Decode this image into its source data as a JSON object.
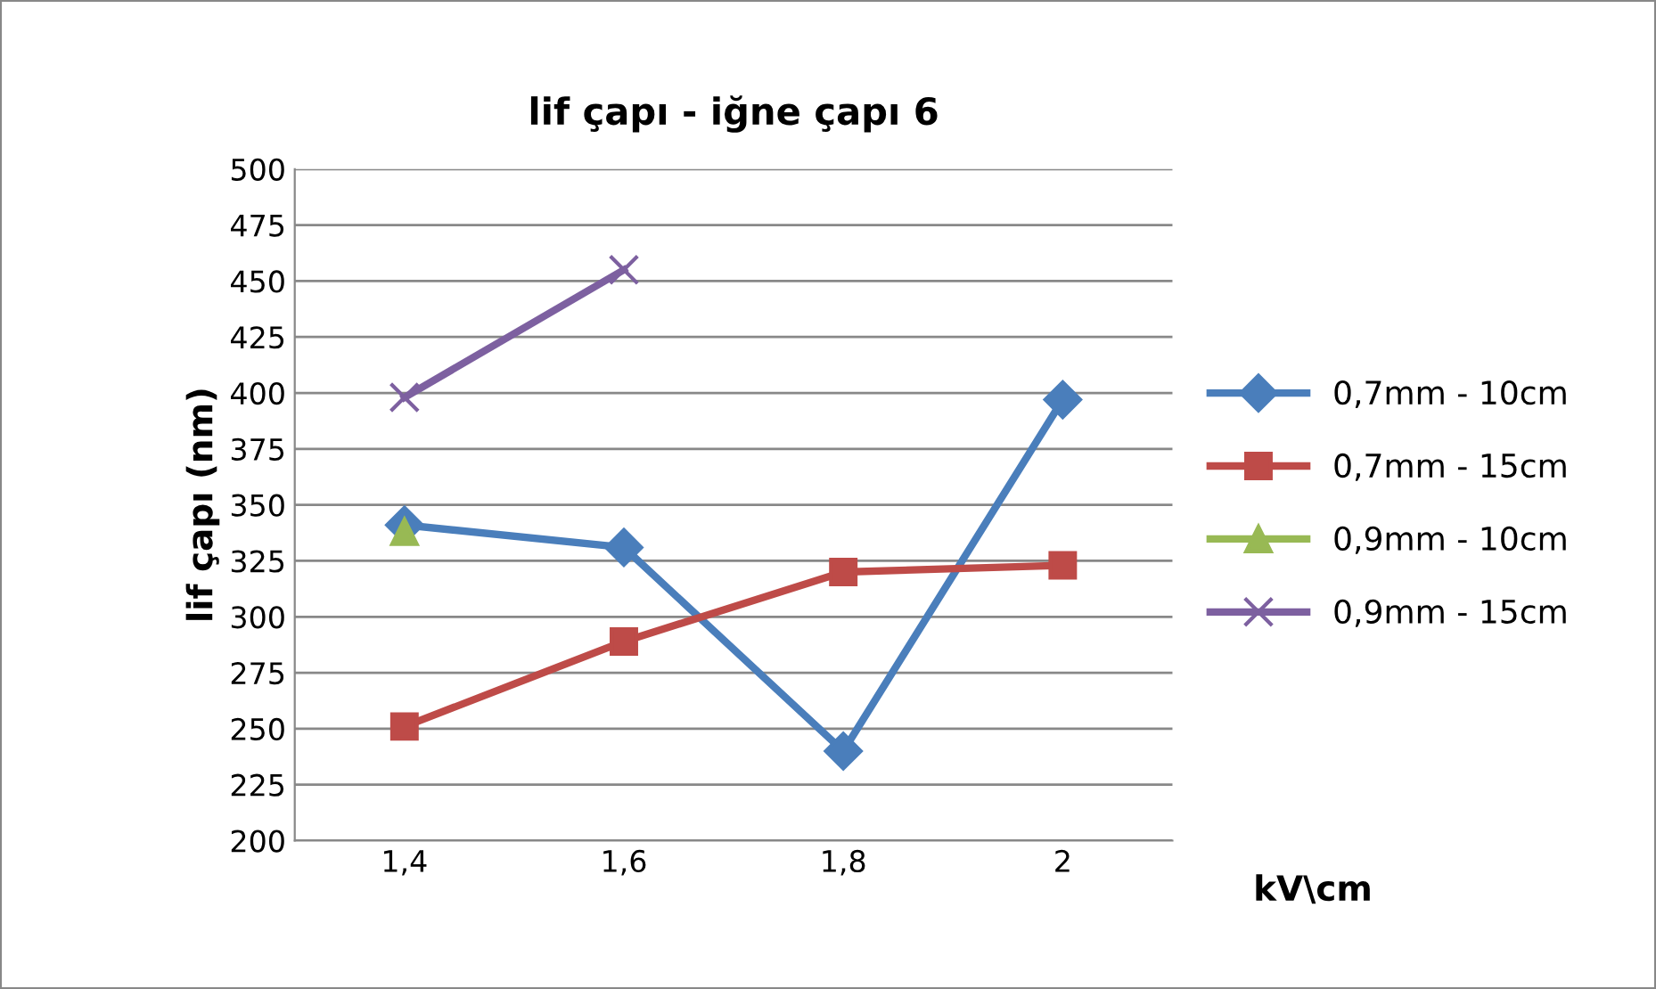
{
  "chart_data": {
    "type": "line",
    "title": "lif çapı - iğne çapı 6",
    "xlabel": "kV\\cm",
    "ylabel": "lif çapı (nm)",
    "categories": [
      "1,4",
      "1,6",
      "1,8",
      "2"
    ],
    "series": [
      {
        "name": "0,7mm - 10cm",
        "color": "#4a7ebb",
        "marker": "diamond",
        "values": [
          341,
          331,
          240,
          397
        ]
      },
      {
        "name": "0,7mm - 15cm",
        "color": "#be4b48",
        "marker": "square",
        "values": [
          251,
          289,
          320,
          323
        ]
      },
      {
        "name": "0,9mm - 10cm",
        "color": "#98b954",
        "marker": "triangle",
        "values": [
          338,
          null,
          null,
          null
        ]
      },
      {
        "name": "0,9mm - 15cm",
        "color": "#7d60a0",
        "marker": "cross",
        "values": [
          398,
          455,
          null,
          null
        ]
      }
    ],
    "ylim": [
      200,
      500
    ],
    "yticks": [
      200,
      225,
      250,
      275,
      300,
      325,
      350,
      375,
      400,
      425,
      450,
      475,
      500
    ],
    "grid": "y",
    "legend": "right",
    "line_style": "solid"
  }
}
